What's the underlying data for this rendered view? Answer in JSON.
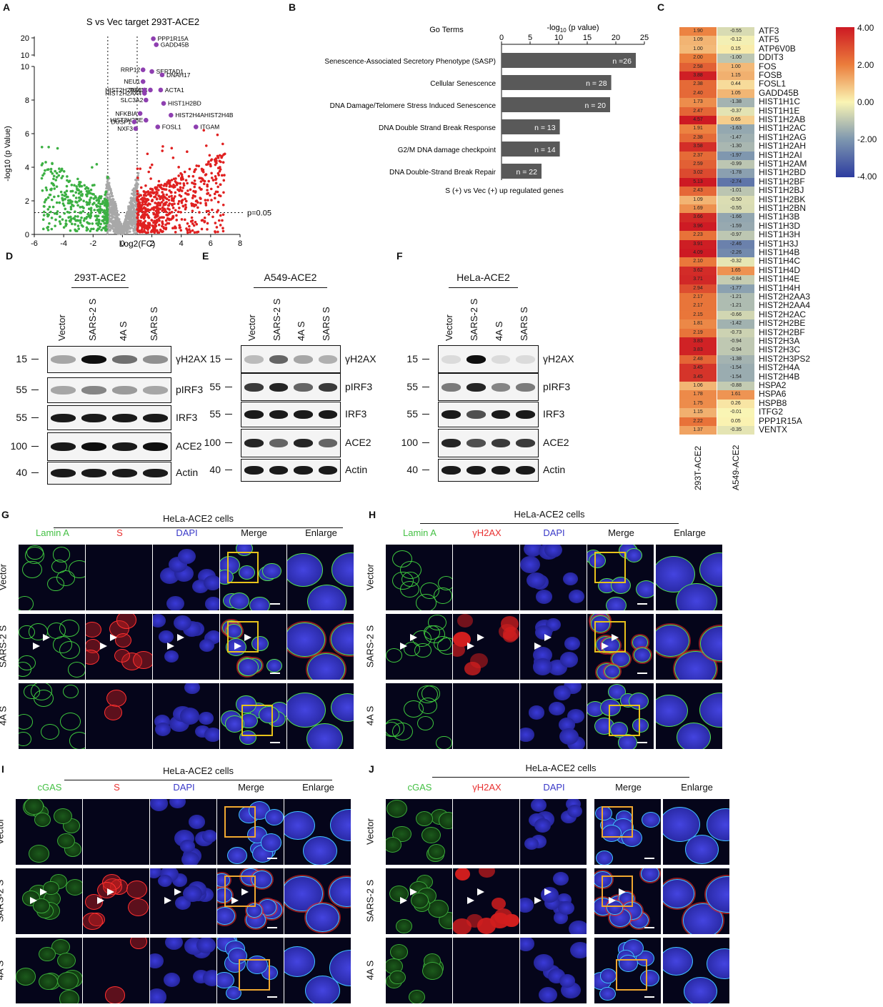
{
  "panels": {
    "A": "A",
    "B": "B",
    "C": "C",
    "D": "D",
    "E": "E",
    "F": "F",
    "G": "G",
    "H": "H",
    "I": "I",
    "J": "J"
  },
  "volcano": {
    "title": "S  vs Vec target 293T-ACE2",
    "xlabel": "Log2(FC)",
    "ylabel": "-log10 (p Value)",
    "xticks": [
      "-6",
      "-4",
      "-2",
      "0",
      "2",
      "4",
      "6",
      "8"
    ],
    "yticks_low": [
      "0",
      "2",
      "4",
      "6",
      "8",
      "10"
    ],
    "yticks_high": [
      "10",
      "20"
    ],
    "threshold_label": "p=0.05",
    "colors": {
      "down": "#3cb043",
      "up": "#e02020",
      "ns": "#a8a8a8",
      "highlight": "#8e3fb0"
    },
    "genes": [
      {
        "name": "PPP1R15A",
        "x": 2.1,
        "y": 19.5
      },
      {
        "name": "GADD45B",
        "x": 2.3,
        "y": 16
      },
      {
        "name": "RRP12",
        "x": 1.4,
        "y": 9.8
      },
      {
        "name": "SERTAD1",
        "x": 2.0,
        "y": 9.7
      },
      {
        "name": "DNAH17",
        "x": 2.7,
        "y": 9.5
      },
      {
        "name": "NEU1",
        "x": 1.4,
        "y": 9.1
      },
      {
        "name": "TEX14",
        "x": 1.9,
        "y": 8.6
      },
      {
        "name": "HIST2H2AA3",
        "x": 1.5,
        "y": 8.6
      },
      {
        "name": "HIST2H2AA4",
        "x": 1.5,
        "y": 8.4
      },
      {
        "name": "ACTA1",
        "x": 2.6,
        "y": 8.6
      },
      {
        "name": "SLC3A2",
        "x": 1.6,
        "y": 8.0
      },
      {
        "name": "HIST1H2BD",
        "x": 2.8,
        "y": 7.8
      },
      {
        "name": "NFKBIA",
        "x": 1.2,
        "y": 7.2
      },
      {
        "name": "HIST2H4AHIST2H4B",
        "x": 3.3,
        "y": 7.1
      },
      {
        "name": "HIST2H2BE",
        "x": 1.6,
        "y": 6.8
      },
      {
        "name": "DUSP1",
        "x": 0.8,
        "y": 6.7
      },
      {
        "name": "FOSL1",
        "x": 2.4,
        "y": 6.4
      },
      {
        "name": "ITGAM",
        "x": 5.0,
        "y": 6.4
      },
      {
        "name": "NXF3",
        "x": 0.9,
        "y": 6.3
      }
    ]
  },
  "goterms": {
    "header": "Go Terms",
    "axis_title": "-log",
    "axis_sub": "10",
    "axis_rest": " (p value)",
    "xticks": [
      "0",
      "5",
      "10",
      "15",
      "20",
      "25"
    ],
    "footer": "S (+) vs Vec (+) up regulated genes",
    "bars": [
      {
        "term": "Senescence-Associated Secretory Phenotype (SASP)",
        "value": 23.5,
        "n": "n =26"
      },
      {
        "term": "Cellular Senescence",
        "value": 19.2,
        "n": "n = 28"
      },
      {
        "term": "DNA Damage/Telomere Stress Induced Senescence",
        "value": 19.0,
        "n": "n = 20"
      },
      {
        "term": "DNA Double Strand Break Response",
        "value": 10.2,
        "n": "n = 13"
      },
      {
        "term": "G2/M DNA damage checkpoint",
        "value": 10.2,
        "n": "n = 14"
      },
      {
        "term": "DNA Double-Strand Break Repair",
        "value": 7.0,
        "n": "n = 22"
      }
    ]
  },
  "heatmap": {
    "columns": [
      "293T-ACE2",
      "A549-ACE2"
    ],
    "legend": [
      "4.00",
      "2.00",
      "0.00",
      "-2.00",
      "-4.00"
    ],
    "rows": [
      {
        "gene": "ATF3",
        "a": "1.90",
        "b": "-0.55"
      },
      {
        "gene": "ATF5",
        "a": "1.09",
        "b": "-0.12"
      },
      {
        "gene": "ATP6V0B",
        "a": "1.00",
        "b": "0.15"
      },
      {
        "gene": "DDIT3",
        "a": "2.00",
        "b": "-1.00"
      },
      {
        "gene": "FOS",
        "a": "2.58",
        "b": "1.00"
      },
      {
        "gene": "FOSB",
        "a": "3.88",
        "b": "1.15"
      },
      {
        "gene": "FOSL1",
        "a": "2.38",
        "b": "0.44"
      },
      {
        "gene": "GADD45B",
        "a": "2.40",
        "b": "1.05"
      },
      {
        "gene": "HIST1H1C",
        "a": "1.73",
        "b": "-1.38"
      },
      {
        "gene": "HIST1H1E",
        "a": "2.47",
        "b": "-0.37"
      },
      {
        "gene": "HIST1H2AB",
        "a": "4.57",
        "b": "0.65"
      },
      {
        "gene": "HIST1H2AC",
        "a": "1.91",
        "b": "-1.63"
      },
      {
        "gene": "HIST1H2AG",
        "a": "2.38",
        "b": "-1.47"
      },
      {
        "gene": "HIST1H2AH",
        "a": "3.58",
        "b": "-1.30"
      },
      {
        "gene": "HIST1H2AI",
        "a": "2.37",
        "b": "-1.97"
      },
      {
        "gene": "HIST1H2AM",
        "a": "2.59",
        "b": "-0.99"
      },
      {
        "gene": "HIST1H2BD",
        "a": "3.02",
        "b": "-1.78"
      },
      {
        "gene": "HIST1H2BF",
        "a": "5.13",
        "b": "-2.74"
      },
      {
        "gene": "HIST1H2BJ",
        "a": "2.43",
        "b": "-1.01"
      },
      {
        "gene": "HIST1H2BK",
        "a": "1.09",
        "b": "-0.50"
      },
      {
        "gene": "HIST1H2BN",
        "a": "1.69",
        "b": "-0.55"
      },
      {
        "gene": "HIST1H3B",
        "a": "3.66",
        "b": "-1.66"
      },
      {
        "gene": "HIST1H3D",
        "a": "3.96",
        "b": "-1.59"
      },
      {
        "gene": "HIST1H3H",
        "a": "2.23",
        "b": "-0.97"
      },
      {
        "gene": "HIST1H3J",
        "a": "3.91",
        "b": "-2.46"
      },
      {
        "gene": "HIST1H4B",
        "a": "4.09",
        "b": "-2.26"
      },
      {
        "gene": "HIST1H4C",
        "a": "2.10",
        "b": "-0.32"
      },
      {
        "gene": "HIST1H4D",
        "a": "3.62",
        "b": "1.65"
      },
      {
        "gene": "HIST1H4E",
        "a": "3.71",
        "b": "-0.84"
      },
      {
        "gene": "HIST1H4H",
        "a": "2.94",
        "b": "-1.77"
      },
      {
        "gene": "HIST2H2AA3",
        "a": "2.17",
        "b": "-1.21"
      },
      {
        "gene": "HIST2H2AA4",
        "a": "2.17",
        "b": "-1.21"
      },
      {
        "gene": "HIST2H2AC",
        "a": "2.15",
        "b": "-0.66"
      },
      {
        "gene": "HIST2H2BE",
        "a": "1.81",
        "b": "-1.42"
      },
      {
        "gene": "HIST2H2BF",
        "a": "2.19",
        "b": "-0.73"
      },
      {
        "gene": "HIST2H3A",
        "a": "3.83",
        "b": "-0.94"
      },
      {
        "gene": "HIST2H3C",
        "a": "3.83",
        "b": "-0.94"
      },
      {
        "gene": "HIST2H3PS2",
        "a": "2.48",
        "b": "-1.38"
      },
      {
        "gene": "HIST2H4A",
        "a": "3.45",
        "b": "-1.54"
      },
      {
        "gene": "HIST2H4B",
        "a": "3.45",
        "b": "-1.54"
      },
      {
        "gene": "HSPA2",
        "a": "1.06",
        "b": "-0.88"
      },
      {
        "gene": "HSPA6",
        "a": "1.78",
        "b": "1.61"
      },
      {
        "gene": "HSPB8",
        "a": "1.75",
        "b": "0.26"
      },
      {
        "gene": "ITFG2",
        "a": "1.15",
        "b": "-0.01"
      },
      {
        "gene": "PPP1R15A",
        "a": "2.22",
        "b": "0.05"
      },
      {
        "gene": "VENTX",
        "a": "1.37",
        "b": "-0.35"
      }
    ]
  },
  "blots": {
    "lanes": [
      "Vector",
      "SARS-2 S",
      "4A S",
      "SARS S"
    ],
    "rows": [
      "γH2AX",
      "pIRF3",
      "IRF3",
      "ACE2",
      "Actin"
    ],
    "mw": [
      "15",
      "55",
      "55",
      "100",
      "40"
    ],
    "cell_lines": [
      "293T-ACE2",
      "A549-ACE2",
      "HeLa-ACE2"
    ]
  },
  "micro": {
    "title": "HeLa-ACE2 cells",
    "G_cols": [
      "Lamin A",
      "S",
      "DAPI",
      "Merge",
      "Enlarge"
    ],
    "H_cols": [
      "Lamin A",
      "γH2AX",
      "DAPI",
      "Merge",
      "Enlarge"
    ],
    "I_cols": [
      "cGAS",
      "S",
      "DAPI",
      "Merge",
      "Enlarge"
    ],
    "J_cols": [
      "cGAS",
      "γH2AX",
      "DAPI",
      "Merge",
      "Enlarge"
    ],
    "rows": [
      "Vector",
      "SARS-2 S",
      "4A S"
    ]
  }
}
